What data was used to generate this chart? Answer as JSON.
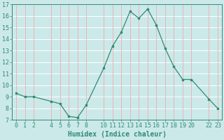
{
  "x": [
    0,
    1,
    2,
    4,
    5,
    6,
    7,
    8,
    10,
    11,
    12,
    13,
    14,
    15,
    16,
    17,
    18,
    19,
    20,
    22,
    23
  ],
  "y": [
    9.3,
    9.0,
    9.0,
    8.6,
    8.4,
    7.3,
    7.2,
    8.3,
    11.5,
    13.4,
    14.6,
    16.4,
    15.8,
    16.6,
    15.2,
    13.2,
    11.6,
    10.5,
    10.5,
    8.8,
    8.0
  ],
  "xlabel": "Humidex (Indice chaleur)",
  "xlim": [
    -0.5,
    23.5
  ],
  "ylim": [
    7,
    17
  ],
  "xticks": [
    0,
    1,
    2,
    4,
    5,
    6,
    7,
    8,
    10,
    11,
    12,
    13,
    14,
    15,
    16,
    17,
    18,
    19,
    20,
    22,
    23
  ],
  "yticks": [
    7,
    8,
    9,
    10,
    11,
    12,
    13,
    14,
    15,
    16,
    17
  ],
  "line_color": "#2e8b74",
  "bg_color": "#cce9e9",
  "hgrid_color": "#ffffff",
  "vgrid_color": "#e8b4b8",
  "tick_fontsize": 6.0,
  "xlabel_fontsize": 7.0
}
